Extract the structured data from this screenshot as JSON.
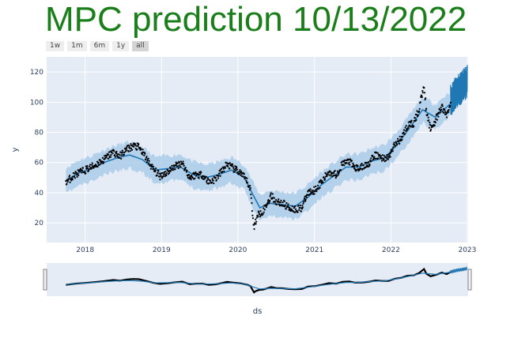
{
  "title": {
    "text": "MPC prediction 10/13/2022",
    "color": "#1a7f1a"
  },
  "range_buttons": [
    {
      "label": "1w",
      "active": false
    },
    {
      "label": "1m",
      "active": false
    },
    {
      "label": "6m",
      "active": false
    },
    {
      "label": "1y",
      "active": false
    },
    {
      "label": "all",
      "active": true
    }
  ],
  "colors": {
    "plot_bg": "#e5ecf6",
    "grid": "#ffffff",
    "band": "#a6cbe8",
    "forecast": "#1f77b4",
    "forecast_dark": "#0b5e98",
    "actual": "#000000"
  },
  "chart_data": {
    "type": "line",
    "xlabel": "ds",
    "ylabel": "y",
    "x_ticks": [
      "2018",
      "2019",
      "2020",
      "2021",
      "2022",
      "2023"
    ],
    "y_ticks": [
      20,
      40,
      60,
      80,
      100,
      120
    ],
    "xlim": [
      "2017-07-01",
      "2023-01-05"
    ],
    "ylim": [
      7,
      130
    ],
    "grid": true,
    "rangeslider": true,
    "forecast_start": "2022-10-13",
    "series": [
      {
        "role": "actual",
        "points": [
          [
            "2017-10-01",
            47
          ],
          [
            "2017-11-15",
            52
          ],
          [
            "2018-01-01",
            55
          ],
          [
            "2018-02-15",
            58
          ],
          [
            "2018-04-01",
            62
          ],
          [
            "2018-05-15",
            67
          ],
          [
            "2018-06-15",
            64
          ],
          [
            "2018-07-20",
            69
          ],
          [
            "2018-08-20",
            71
          ],
          [
            "2018-09-15",
            70
          ],
          [
            "2018-10-15",
            64
          ],
          [
            "2018-11-20",
            56
          ],
          [
            "2018-12-24",
            51
          ],
          [
            "2019-02-01",
            54
          ],
          [
            "2019-03-01",
            57
          ],
          [
            "2019-04-10",
            60
          ],
          [
            "2019-05-15",
            50
          ],
          [
            "2019-06-15",
            52
          ],
          [
            "2019-07-15",
            52
          ],
          [
            "2019-08-15",
            47
          ],
          [
            "2019-09-15",
            49
          ],
          [
            "2019-10-15",
            54
          ],
          [
            "2019-11-10",
            59
          ],
          [
            "2019-12-10",
            56
          ],
          [
            "2020-01-15",
            53
          ],
          [
            "2020-02-15",
            47
          ],
          [
            "2020-03-01",
            42
          ],
          [
            "2020-03-10",
            28
          ],
          [
            "2020-03-18",
            16
          ],
          [
            "2020-03-25",
            21
          ],
          [
            "2020-04-10",
            26
          ],
          [
            "2020-05-01",
            28
          ],
          [
            "2020-06-08",
            38
          ],
          [
            "2020-07-01",
            34
          ],
          [
            "2020-08-01",
            33
          ],
          [
            "2020-09-01",
            30
          ],
          [
            "2020-10-01",
            29
          ],
          [
            "2020-11-01",
            30
          ],
          [
            "2020-12-01",
            40
          ],
          [
            "2021-01-05",
            42
          ],
          [
            "2021-02-10",
            48
          ],
          [
            "2021-03-10",
            54
          ],
          [
            "2021-04-15",
            52
          ],
          [
            "2021-05-15",
            59
          ],
          [
            "2021-06-15",
            61
          ],
          [
            "2021-07-15",
            56
          ],
          [
            "2021-08-20",
            57
          ],
          [
            "2021-09-20",
            60
          ],
          [
            "2021-10-20",
            65
          ],
          [
            "2021-11-20",
            63
          ],
          [
            "2021-12-20",
            63
          ],
          [
            "2022-01-20",
            72
          ],
          [
            "2022-02-20",
            76
          ],
          [
            "2022-03-20",
            84
          ],
          [
            "2022-04-20",
            86
          ],
          [
            "2022-05-15",
            95
          ],
          [
            "2022-06-08",
            112
          ],
          [
            "2022-06-20",
            92
          ],
          [
            "2022-07-10",
            82
          ],
          [
            "2022-08-10",
            90
          ],
          [
            "2022-09-01",
            97
          ],
          [
            "2022-09-25",
            91
          ],
          [
            "2022-10-13",
            100
          ]
        ]
      },
      {
        "role": "forecast",
        "points": [
          [
            "2017-10-01",
            48
          ],
          [
            "2017-12-01",
            53
          ],
          [
            "2018-02-01",
            56
          ],
          [
            "2018-04-01",
            60
          ],
          [
            "2018-06-01",
            63
          ],
          [
            "2018-08-01",
            65
          ],
          [
            "2018-10-01",
            62
          ],
          [
            "2018-12-01",
            55
          ],
          [
            "2019-02-01",
            56
          ],
          [
            "2019-04-01",
            57
          ],
          [
            "2019-06-01",
            52
          ],
          [
            "2019-08-01",
            50
          ],
          [
            "2019-10-01",
            52
          ],
          [
            "2019-12-01",
            55
          ],
          [
            "2020-02-01",
            50
          ],
          [
            "2020-03-15",
            38
          ],
          [
            "2020-04-15",
            30
          ],
          [
            "2020-06-01",
            33
          ],
          [
            "2020-08-01",
            32
          ],
          [
            "2020-10-01",
            31
          ],
          [
            "2020-12-01",
            37
          ],
          [
            "2021-02-01",
            45
          ],
          [
            "2021-04-01",
            51
          ],
          [
            "2021-06-01",
            57
          ],
          [
            "2021-08-01",
            57
          ],
          [
            "2021-10-01",
            61
          ],
          [
            "2021-12-01",
            63
          ],
          [
            "2022-02-01",
            72
          ],
          [
            "2022-04-01",
            83
          ],
          [
            "2022-06-01",
            95
          ],
          [
            "2022-08-01",
            90
          ],
          [
            "2022-10-13",
            99
          ],
          [
            "2022-11-15",
            106
          ],
          [
            "2022-12-15",
            110
          ],
          [
            "2023-01-01",
            113
          ]
        ]
      }
    ]
  }
}
